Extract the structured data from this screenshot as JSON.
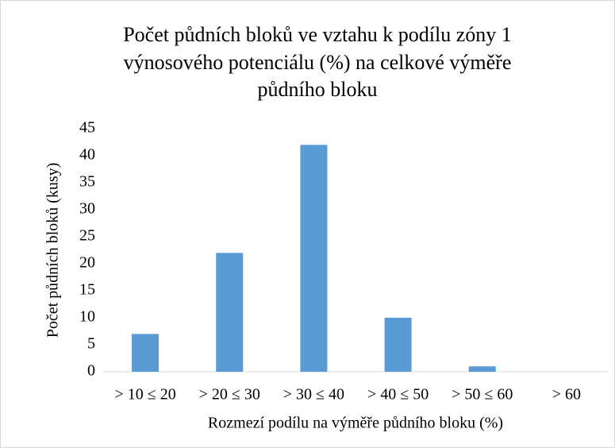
{
  "chart_data": {
    "type": "bar",
    "title": [
      "Počet půdních bloků ve vztahu k podílu zóny 1",
      "výnosového potenciálu (%) na celkové výměře",
      "půdního bloku"
    ],
    "x_label": "Rozmezí podílu na výměře půdního bloku (%)",
    "y_label": "Počet půdních bloků (kusy)",
    "categories": [
      "> 10 ≤ 20",
      "> 20 ≤ 30",
      "> 30 ≤ 40",
      "> 40 ≤ 50",
      "> 50 ≤ 60",
      "> 60"
    ],
    "values": [
      7,
      22,
      42,
      10,
      1,
      0
    ],
    "color": "#5b9bd5",
    "ylim": [
      0,
      45
    ],
    "yticks": [
      0,
      5,
      10,
      15,
      20,
      25,
      30,
      35,
      40,
      45
    ],
    "grid": false
  }
}
